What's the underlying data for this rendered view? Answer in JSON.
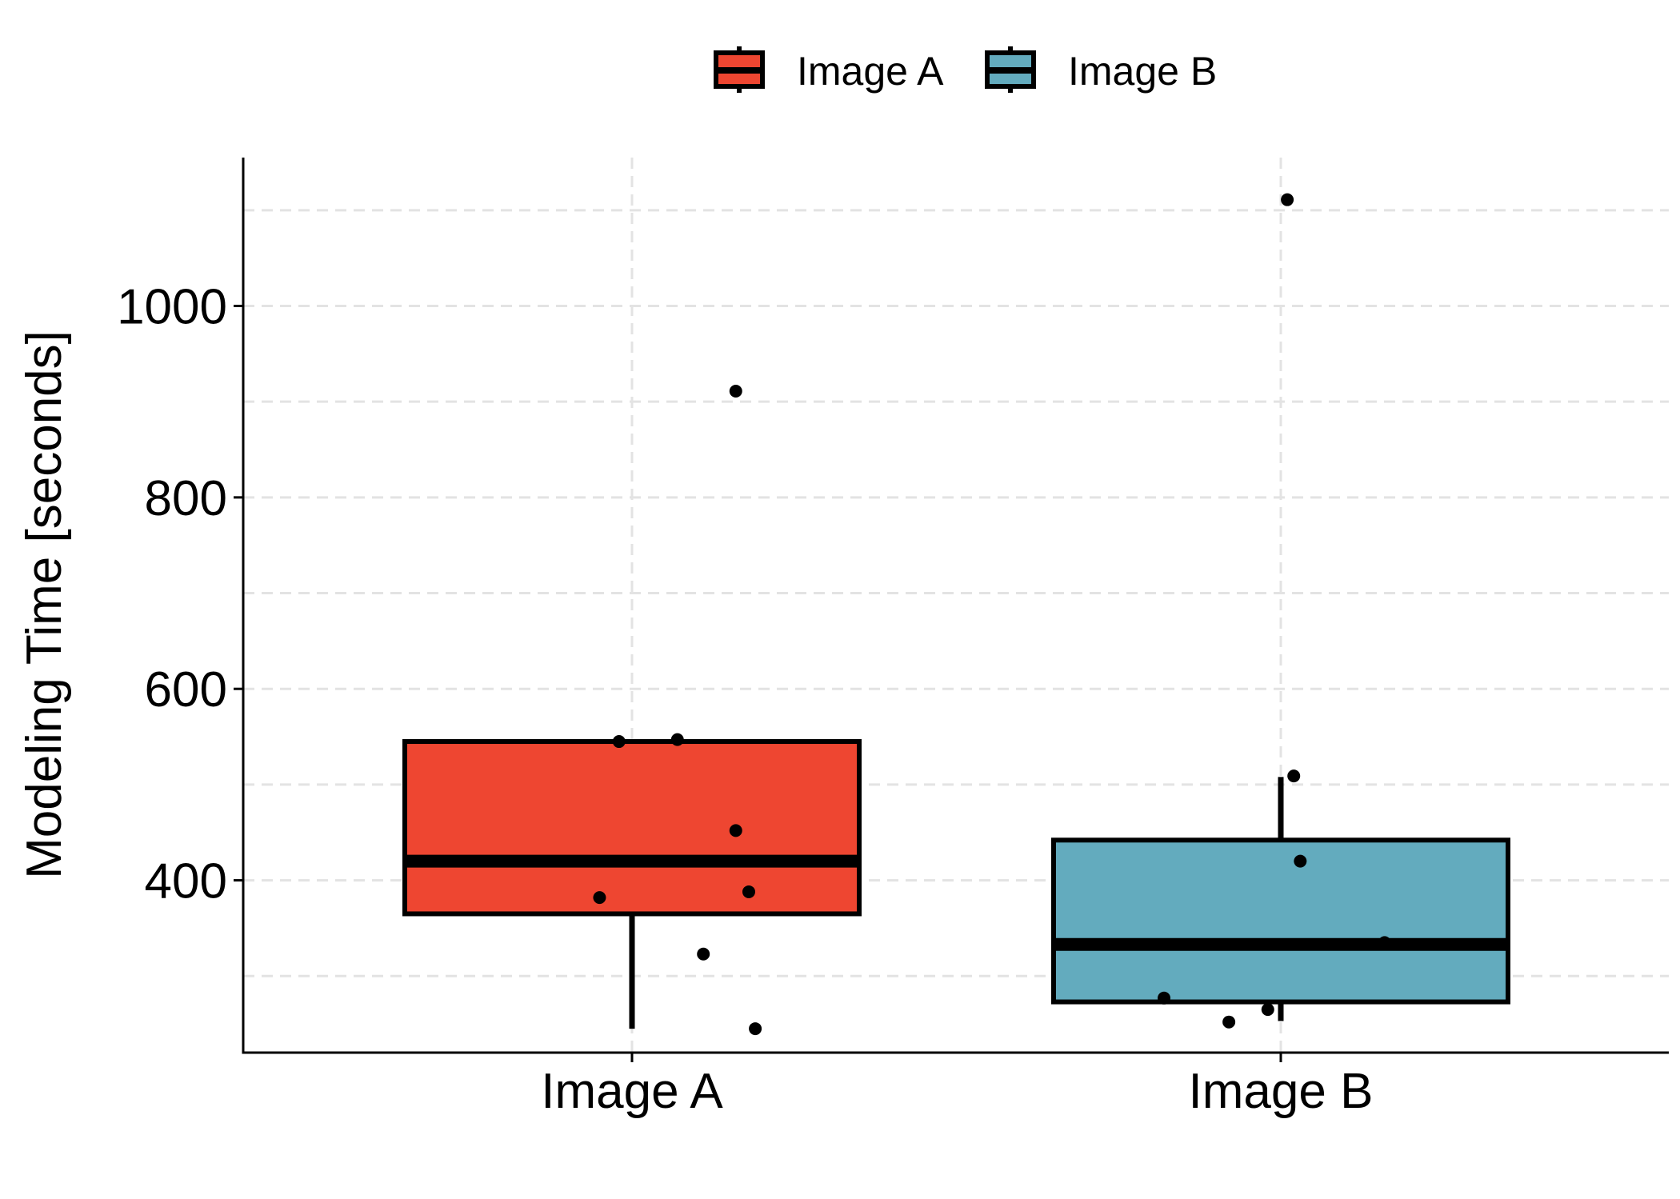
{
  "chart_data": {
    "type": "boxplot",
    "title": "",
    "xlabel": "",
    "ylabel": "Modeling Time [seconds]",
    "ylim": [
      220,
      1155
    ],
    "yticks": [
      400,
      600,
      800,
      1000
    ],
    "grid": true,
    "grid_style": "dashed",
    "legend_position": "top",
    "categories": [
      "Image A",
      "Image B"
    ],
    "series": [
      {
        "name": "Image A",
        "color": "#EE4631",
        "box": {
          "lower_whisker": 245,
          "q1": 365,
          "median": 420,
          "q3": 545,
          "upper_whisker": 545
        },
        "points": [
          {
            "x_jitter": -0.05,
            "y": 382
          },
          {
            "x_jitter": -0.02,
            "y": 545
          },
          {
            "x_jitter": 0.07,
            "y": 547
          },
          {
            "x_jitter": 0.11,
            "y": 323
          },
          {
            "x_jitter": 0.16,
            "y": 911
          },
          {
            "x_jitter": 0.16,
            "y": 452
          },
          {
            "x_jitter": 0.18,
            "y": 388
          },
          {
            "x_jitter": 0.19,
            "y": 245
          }
        ]
      },
      {
        "name": "Image B",
        "color": "#63ABBE",
        "box": {
          "lower_whisker": 253,
          "q1": 273,
          "median": 333,
          "q3": 442,
          "upper_whisker": 508
        },
        "points": [
          {
            "x_jitter": -0.18,
            "y": 277
          },
          {
            "x_jitter": -0.08,
            "y": 252
          },
          {
            "x_jitter": -0.02,
            "y": 265
          },
          {
            "x_jitter": 0.01,
            "y": 1111
          },
          {
            "x_jitter": 0.02,
            "y": 509
          },
          {
            "x_jitter": 0.03,
            "y": 420
          },
          {
            "x_jitter": 0.16,
            "y": 335
          }
        ]
      }
    ]
  }
}
